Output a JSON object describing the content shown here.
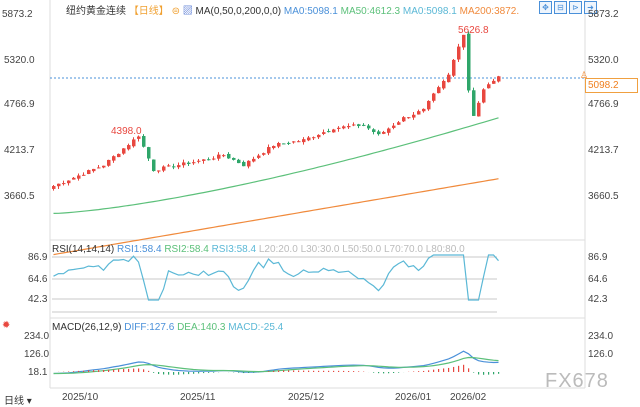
{
  "header": {
    "title": "纽约黄金连续",
    "period": "【日线】",
    "indicator": "MA(0,50,0,200,0,0)",
    "ma_values": [
      "MA0:5098.1",
      "MA50:4612.3",
      "MA0:5098.1",
      "MA200:3872."
    ]
  },
  "toolbar": {
    "icons": [
      "move-icon",
      "fit-icon",
      "zoom-icon",
      "export-icon"
    ]
  },
  "price_axis": [
    "5873.2",
    "5320.0",
    "4766.9",
    "4213.7",
    "3660.5"
  ],
  "current_price": "5098.2",
  "annotations": {
    "high": "5626.8",
    "local_high": "4398.0"
  },
  "rsi": {
    "title": "RSI(14,14,14)",
    "values": [
      "RSI1:58.4",
      "RSI2:58.4",
      "RSI3:58.4"
    ],
    "levels": [
      "L20:20.0",
      "L30:30.0",
      "L50:50.0",
      "L70:70.0",
      "L80:80.0"
    ],
    "axis": [
      "86.9",
      "64.6",
      "42.3"
    ]
  },
  "macd": {
    "title": "MACD(26,12,9)",
    "diff": "DIFF:127.6",
    "dea": "DEA:140.3",
    "macd": "MACD:-25.4",
    "axis": [
      "234.0",
      "126.0",
      "18.1"
    ]
  },
  "dates": [
    "2025/10",
    "2025/11",
    "2025/12",
    "2026/01",
    "2026/02"
  ],
  "watermark": "FX678",
  "colors": {
    "up": "#e8473f",
    "down": "#2fa66a",
    "ma50": "#5cc07a",
    "ma200": "#f08a3c",
    "rsi": "#5bb8d6",
    "grid": "#c8c8c8"
  },
  "chart_data": {
    "type": "candlestick",
    "price_keypoints": [
      [
        0,
        3783
      ],
      [
        10,
        4038
      ],
      [
        16,
        4342
      ],
      [
        17,
        4398
      ],
      [
        20,
        3978
      ],
      [
        30,
        4100
      ],
      [
        34,
        4160
      ],
      [
        38,
        4038
      ],
      [
        44,
        4280
      ],
      [
        50,
        4342
      ],
      [
        56,
        4488
      ],
      [
        62,
        4525
      ],
      [
        65,
        4400
      ],
      [
        70,
        4610
      ],
      [
        74,
        4706
      ],
      [
        76,
        4890
      ],
      [
        79,
        5130
      ],
      [
        81,
        5496
      ],
      [
        82,
        5626.8
      ],
      [
        83,
        4950
      ],
      [
        84,
        4646
      ],
      [
        86,
        4950
      ],
      [
        88,
        5070
      ],
      [
        89,
        5098.2
      ]
    ],
    "ma50_range": [
      3450,
      4612.3
    ],
    "ma200_range": [
      2950,
      3872
    ]
  }
}
